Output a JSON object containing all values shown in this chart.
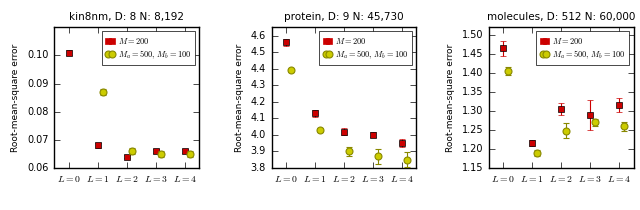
{
  "subplots": [
    {
      "title": "kin8nm, D: 8 N: 8,192",
      "ylabel": "Root-mean-square error",
      "xlim": [
        -0.5,
        4.5
      ],
      "ylim": [
        0.06,
        0.11
      ],
      "yticks": [
        0.06,
        0.07,
        0.08,
        0.09,
        0.1
      ],
      "yticklabels": [
        "0.06",
        "0.07",
        "0.08",
        "0.09",
        "0.10"
      ],
      "red_y": [
        0.101,
        0.068,
        0.064,
        0.066,
        0.066
      ],
      "red_yerr": [
        0.0008,
        0.0008,
        0.0006,
        0.0006,
        0.0006
      ],
      "yel_y": [
        null,
        0.087,
        0.066,
        0.065,
        0.065
      ],
      "yel_yerr": [
        null,
        0.001,
        0.001,
        0.001,
        0.001
      ]
    },
    {
      "title": "protein, D: 9 N: 45,730",
      "ylabel": "Root-mean-square error",
      "xlim": [
        -0.5,
        4.5
      ],
      "ylim": [
        3.8,
        4.65
      ],
      "yticks": [
        3.8,
        3.9,
        4.0,
        4.1,
        4.2,
        4.3,
        4.4,
        4.5,
        4.6
      ],
      "yticklabels": [
        "3.8",
        "3.9",
        "4.0",
        "4.1",
        "4.2",
        "4.3",
        "4.4",
        "4.5",
        "4.6"
      ],
      "red_y": [
        4.56,
        4.13,
        4.02,
        4.0,
        3.95
      ],
      "red_yerr": [
        0.02,
        0.02,
        0.02,
        0.015,
        0.025
      ],
      "yel_y": [
        4.39,
        4.03,
        3.9,
        3.87,
        3.85
      ],
      "yel_yerr": [
        0.01,
        0.01,
        0.025,
        0.045,
        0.045
      ]
    },
    {
      "title": "molecules, D: 512 N: 60,000",
      "ylabel": "Root-mean-square error",
      "xlim": [
        -0.5,
        4.5
      ],
      "ylim": [
        1.15,
        1.52
      ],
      "yticks": [
        1.15,
        1.2,
        1.25,
        1.3,
        1.35,
        1.4,
        1.45,
        1.5
      ],
      "yticklabels": [
        "1.15",
        "1.20",
        "1.25",
        "1.30",
        "1.35",
        "1.40",
        "1.45",
        "1.50"
      ],
      "red_y": [
        1.465,
        1.215,
        1.305,
        1.29,
        1.315
      ],
      "red_yerr": [
        0.02,
        0.008,
        0.015,
        0.04,
        0.018
      ],
      "yel_y": [
        1.405,
        1.19,
        1.248,
        1.27,
        1.26
      ],
      "yel_yerr": [
        0.01,
        0.008,
        0.02,
        0.01,
        0.012
      ]
    }
  ],
  "legend_labels": [
    "$M = 200$",
    "$M_a = 500,\\, M_b = 100$"
  ],
  "red_color": "#cc0000",
  "yel_facecolor": "#cccc00",
  "yel_edgecolor": "#888800",
  "marker_red": "s",
  "marker_yel": "o",
  "x_labels": [
    "$L=0$",
    "$L=1$",
    "$L=2$",
    "$L=3$",
    "$L=4$"
  ]
}
